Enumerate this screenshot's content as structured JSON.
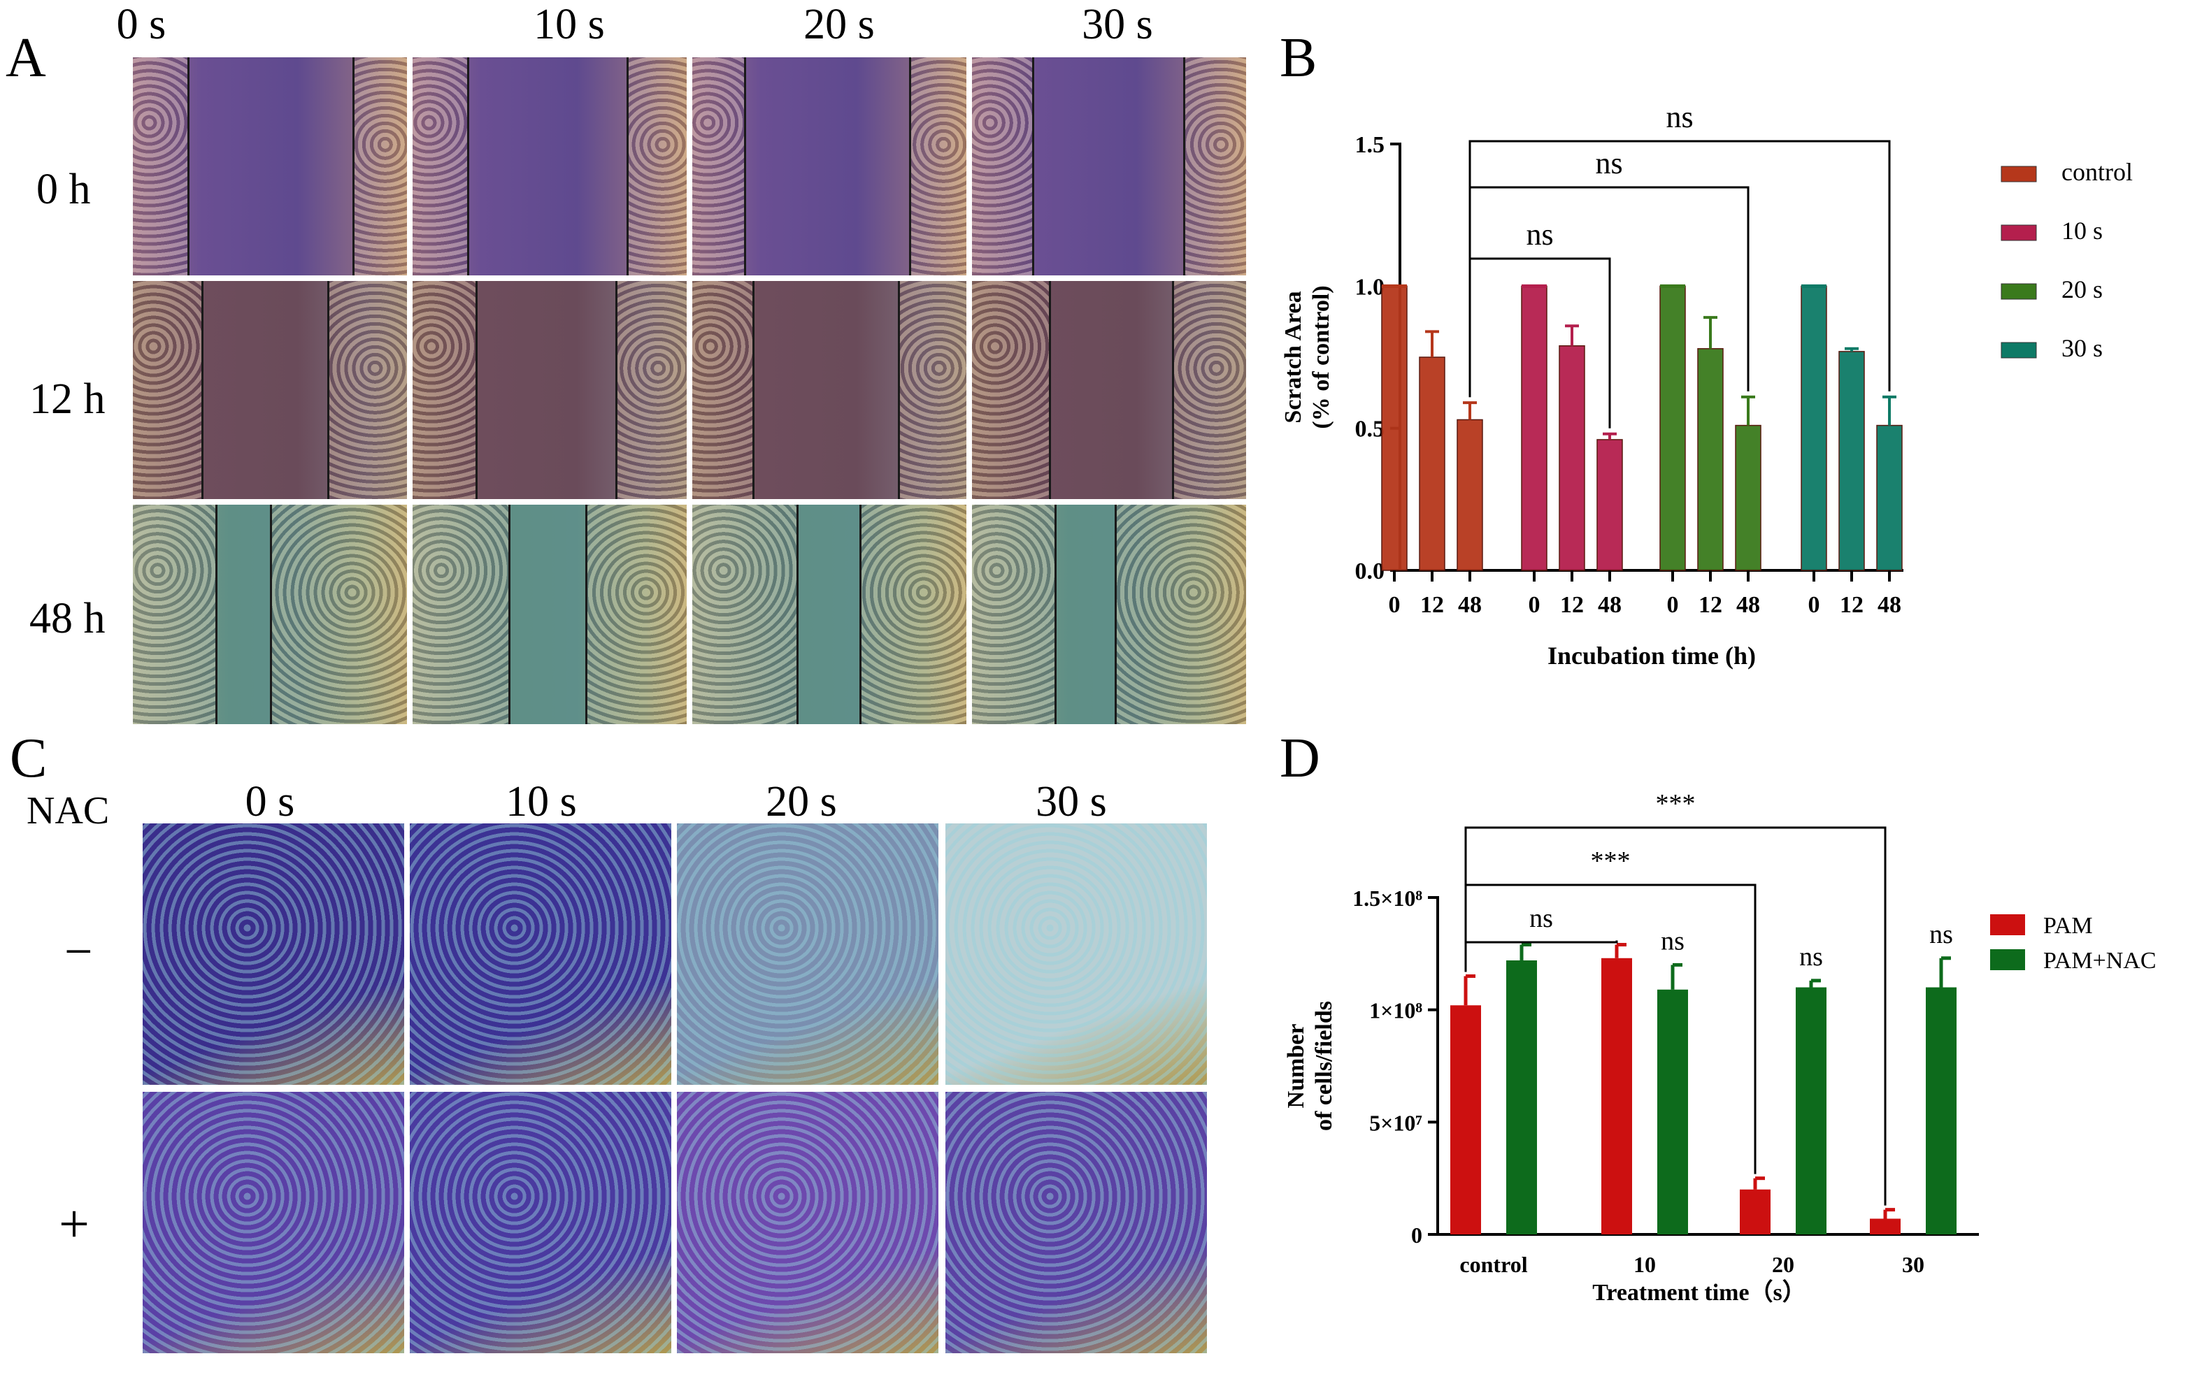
{
  "panelA": {
    "letter": "A",
    "column_labels": [
      "0 s",
      "10 s",
      "20 s",
      "30 s"
    ],
    "row_labels": [
      "0 h",
      "12 h",
      "48 h"
    ]
  },
  "panelC": {
    "letter": "C",
    "nac_label": "NAC",
    "column_labels": [
      "0 s",
      "10 s",
      "20 s",
      "30 s"
    ],
    "row_labels": [
      "−",
      "+"
    ]
  },
  "colors": {
    "control": "#b5371b",
    "s10": "#b41f4d",
    "s20": "#3a7a1c",
    "s30": "#0e7a66",
    "pam": "#cc1010",
    "pam_nac": "#0d6b1c"
  },
  "chart_data": [
    {
      "panel": "B",
      "type": "bar",
      "xlabel": "Incubation time (h)",
      "ylabel_line1": "Scratch Area",
      "ylabel_line2": "(% of control)",
      "ylim": [
        0,
        1.5
      ],
      "yticks": [
        "0.0",
        "0.5",
        "1.0",
        "1.5"
      ],
      "tick_values": [
        0,
        0.5,
        1.0,
        1.5
      ],
      "groups": [
        "control",
        "10 s",
        "20 s",
        "30 s"
      ],
      "categories": [
        "0",
        "12",
        "48"
      ],
      "series": [
        {
          "name": "control",
          "values": [
            1.0,
            0.75,
            0.53
          ],
          "errors": [
            0.0,
            0.09,
            0.06
          ]
        },
        {
          "name": "10 s",
          "values": [
            1.0,
            0.79,
            0.46
          ],
          "errors": [
            0.0,
            0.07,
            0.02
          ]
        },
        {
          "name": "20 s",
          "values": [
            1.0,
            0.78,
            0.51
          ],
          "errors": [
            0.0,
            0.11,
            0.1
          ]
        },
        {
          "name": "30 s",
          "values": [
            1.0,
            0.77,
            0.51
          ],
          "errors": [
            0.0,
            0.01,
            0.1
          ]
        }
      ],
      "legend": [
        "control",
        "10 s",
        "20 s",
        "30 s"
      ],
      "annotations": [
        "ns",
        "ns",
        "ns"
      ]
    },
    {
      "panel": "D",
      "type": "bar",
      "xlabel": "Treatment time（s）",
      "ylabel_line1": "Number",
      "ylabel_line2": "of cells/fields",
      "ylim": [
        0,
        150000000
      ],
      "yticks": [
        "0",
        "5×10⁷",
        "1×10⁸",
        "1.5×10⁸"
      ],
      "tick_values": [
        0,
        50000000,
        100000000,
        150000000
      ],
      "categories": [
        "control",
        "10",
        "20",
        "30"
      ],
      "series": [
        {
          "name": "PAM",
          "values": [
            102000000,
            123000000,
            20000000,
            7000000
          ],
          "errors": [
            13000000,
            6000000,
            5000000,
            4000000
          ]
        },
        {
          "name": "PAM+NAC",
          "values": [
            122000000,
            109000000,
            110000000,
            110000000
          ],
          "errors": [
            7000000,
            11000000,
            3000000,
            13000000
          ]
        }
      ],
      "legend": [
        "PAM",
        "PAM+NAC"
      ],
      "annotations": {
        "brackets": [
          "***",
          "***",
          "ns"
        ],
        "nac_labels": [
          "ns",
          "ns",
          "ns"
        ]
      }
    }
  ]
}
